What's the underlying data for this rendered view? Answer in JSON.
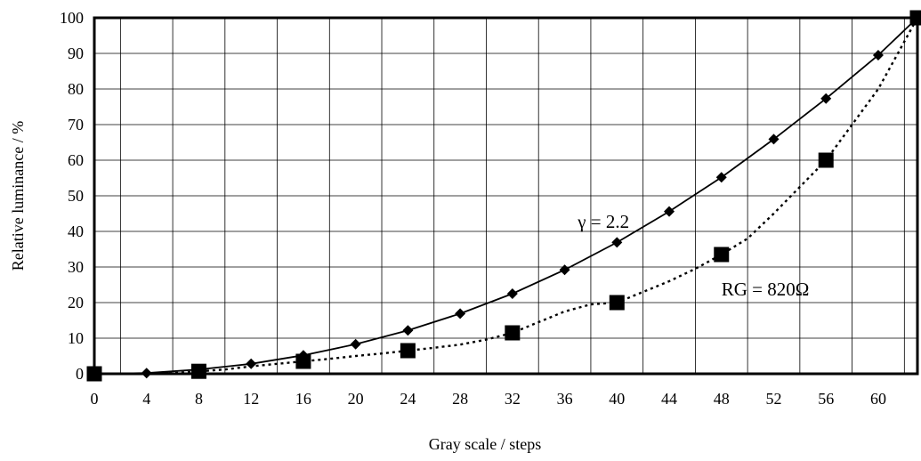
{
  "chart_data": {
    "type": "line",
    "xlabel": "Gray scale / steps",
    "ylabel": "Relative luminance / %",
    "xlim": [
      0,
      63
    ],
    "ylim": [
      0,
      100
    ],
    "x_ticks": [
      0,
      4,
      8,
      12,
      16,
      20,
      24,
      28,
      32,
      36,
      40,
      44,
      48,
      52,
      56,
      60
    ],
    "y_ticks": [
      0,
      10,
      20,
      30,
      40,
      50,
      60,
      70,
      80,
      90,
      100
    ],
    "grid": true,
    "series": [
      {
        "name": "γ = 2.2",
        "marker": "diamond",
        "line_style": "solid",
        "color": "#000000",
        "x": [
          0,
          4,
          8,
          12,
          16,
          20,
          24,
          28,
          32,
          36,
          40,
          44,
          48,
          52,
          56,
          60,
          63
        ],
        "y": [
          0,
          0.2,
          1.2,
          2.8,
          5.2,
          8.3,
          12.2,
          16.9,
          22.5,
          29.2,
          36.9,
          45.6,
          55.2,
          65.9,
          77.3,
          89.5,
          100
        ]
      },
      {
        "name": "RG = 820Ω",
        "marker": "square",
        "line_style": "dotted",
        "color": "#000000",
        "x": [
          0,
          8,
          16,
          24,
          32,
          40,
          48,
          56,
          63
        ],
        "y": [
          0,
          0.7,
          3.5,
          6.5,
          11.5,
          20,
          33.5,
          60,
          100
        ],
        "curve_y": [
          0,
          0,
          0.2,
          0.4,
          0.7,
          1.2,
          2.1,
          2.8,
          3.5,
          4.2,
          5,
          5.7,
          6.5,
          7.3,
          8.2,
          9.6,
          11.5,
          14.5,
          17.5,
          19.5,
          20,
          23,
          26,
          29.5,
          33.5,
          38,
          45,
          52.5,
          60,
          70,
          80,
          100
        ],
        "curve_x": [
          0,
          4,
          6,
          7,
          8,
          10,
          12,
          14,
          16,
          18,
          20,
          22,
          24,
          26,
          28,
          30,
          32,
          34,
          36,
          38,
          40,
          42,
          44,
          46,
          48,
          50,
          52,
          54,
          56,
          58,
          60,
          63
        ]
      }
    ],
    "annotations": [
      {
        "text": "γ = 2.2",
        "x": 37,
        "y": 41
      },
      {
        "text": "RG = 820Ω",
        "x": 48,
        "y": 22
      }
    ]
  }
}
